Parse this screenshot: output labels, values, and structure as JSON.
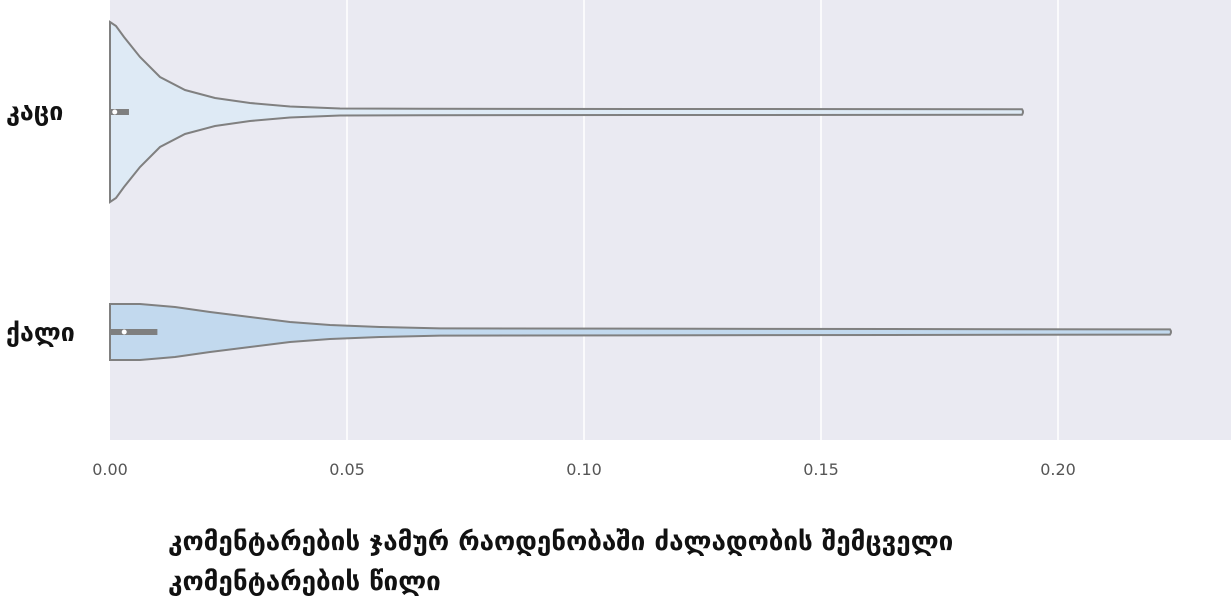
{
  "chart_data": {
    "type": "violin",
    "orientation": "horizontal",
    "categories": [
      "კაცი",
      "ქალი"
    ],
    "series": [
      {
        "category": "კაცი",
        "min": 0.0,
        "max": 0.193,
        "iqr": [
          0.0,
          0.004
        ],
        "median": 0.001,
        "fill": "#deeaf5"
      },
      {
        "category": "ქალი",
        "min": 0.0,
        "max": 0.224,
        "iqr": [
          0.0,
          0.01
        ],
        "median": 0.003,
        "fill": "#c2d9ee"
      }
    ],
    "xticks": [
      "0.00",
      "0.05",
      "0.10",
      "0.15",
      "0.20"
    ],
    "xlim": [
      0.0,
      0.237
    ],
    "xlabel": [
      "კომენტარების ჯამურ რაოდენობაში ძალადობის შემცველი",
      "კომენტარების წილი"
    ],
    "grid": true,
    "background": "#eaeaf2",
    "line_color": "#808080"
  }
}
